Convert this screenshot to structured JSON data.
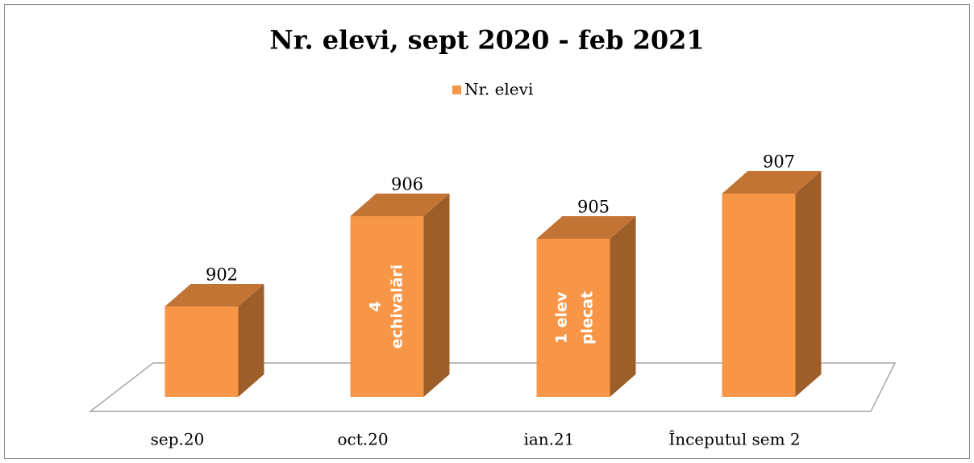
{
  "chart_data": {
    "type": "bar3d",
    "title": "Nr. elevi, sept 2020 - feb 2021",
    "categories": [
      "sep.20",
      "oct.20",
      "ian.21",
      "Începutul sem 2"
    ],
    "series": [
      {
        "name": "Nr. elevi",
        "color": "#F79646",
        "values": [
          902,
          906,
          905,
          907
        ]
      }
    ],
    "annotations": [
      null,
      [
        "4",
        "echivalări"
      ],
      [
        "1 elev",
        "plecat"
      ],
      null
    ],
    "ylim": [
      898,
      910
    ],
    "legend": "top"
  }
}
